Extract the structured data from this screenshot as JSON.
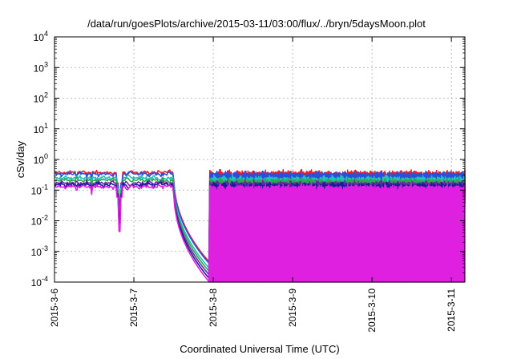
{
  "chart_data": {
    "type": "line",
    "title": "/data/run/goesPlots/archive/2015-03-11/03:00/flux/../bryn/5daysMoon.plot",
    "xlabel": "Coordinated Universal Time (UTC)",
    "ylabel": "cSv/day",
    "x_range_days": [
      0,
      5.17
    ],
    "x_ticks": [
      {
        "value": 0,
        "label": "2015-3-6"
      },
      {
        "value": 1,
        "label": "2015-3-7"
      },
      {
        "value": 2,
        "label": "2015-3-8"
      },
      {
        "value": 3,
        "label": "2015-3-9"
      },
      {
        "value": 4,
        "label": "2015-3-10"
      },
      {
        "value": 5,
        "label": "2015-3-11"
      }
    ],
    "y_scale": "log",
    "ylim": [
      0.0001,
      10000
    ],
    "y_ticks": [
      {
        "value": 0.0001,
        "base": "10",
        "exp": "-4"
      },
      {
        "value": 0.001,
        "base": "10",
        "exp": "-3"
      },
      {
        "value": 0.01,
        "base": "10",
        "exp": "-2"
      },
      {
        "value": 0.1,
        "base": "10",
        "exp": "-1"
      },
      {
        "value": 1,
        "base": "10",
        "exp": "0"
      },
      {
        "value": 10,
        "base": "10",
        "exp": "1"
      },
      {
        "value": 100,
        "base": "10",
        "exp": "2"
      },
      {
        "value": 1000,
        "base": "10",
        "exp": "3"
      },
      {
        "value": 10000,
        "base": "10",
        "exp": "4"
      }
    ],
    "grid": true,
    "legend": "none",
    "series": [
      {
        "color": "#e8202a",
        "base": 0.38,
        "dip_day": 0.82,
        "dip_min": 0.04,
        "gap_end": 0.00045
      },
      {
        "color": "#2c4fd8",
        "base": 0.34,
        "dip_day": 0.82,
        "dip_min": 0.03,
        "gap_end": 0.0004
      },
      {
        "color": "#22c0c0",
        "base": 0.25,
        "dip_day": 0.82,
        "dip_min": 0.02,
        "gap_end": 0.00028
      },
      {
        "color": "#2aa84a",
        "base": 0.21,
        "dip_day": 0.82,
        "dip_min": 0.015,
        "gap_end": 0.00022
      },
      {
        "color": "#6a2a9a",
        "base": 0.17,
        "dip_day": 0.82,
        "dip_min": 0.01,
        "gap_end": 0.00017
      },
      {
        "color": "#1a1aa0",
        "base": 0.15,
        "dip_day": 0.82,
        "dip_min": 0.008,
        "gap_end": 0.00013
      },
      {
        "color": "#e020e0",
        "base": 0.13,
        "dip_day": 0.82,
        "dip_min": 0.0045,
        "gap_end": 0.0001
      }
    ],
    "gap_days": [
      1.5,
      1.95
    ]
  }
}
